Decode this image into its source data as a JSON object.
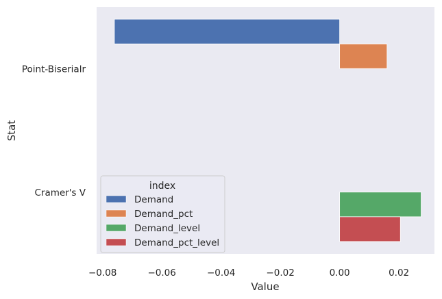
{
  "chart_data": {
    "type": "bar",
    "orientation": "horizontal",
    "xlabel": "Value",
    "ylabel": "Stat",
    "xlim": [
      -0.082,
      0.032
    ],
    "x_ticks": [
      -0.08,
      -0.06,
      -0.04,
      -0.02,
      0.0,
      0.02
    ],
    "x_tick_labels": [
      "−0.08",
      "−0.06",
      "−0.04",
      "−0.02",
      "0.00",
      "0.02"
    ],
    "categories": [
      "Point-Biserialr",
      "Cramer's V"
    ],
    "legend": {
      "title": "index",
      "placement": "lower-left"
    },
    "grid": false,
    "series": [
      {
        "name": "Demand",
        "color": "#4c72b0",
        "values": [
          -0.076,
          null
        ]
      },
      {
        "name": "Demand_pct",
        "color": "#dd8452",
        "values": [
          0.016,
          null
        ]
      },
      {
        "name": "Demand_level",
        "color": "#55a868",
        "values": [
          null,
          0.0275
        ]
      },
      {
        "name": "Demand_pct_level",
        "color": "#c44e52",
        "values": [
          null,
          0.0205
        ]
      }
    ]
  },
  "style": {
    "plot_background": "#eaeaf2",
    "bar_edge": "#ffffff"
  }
}
